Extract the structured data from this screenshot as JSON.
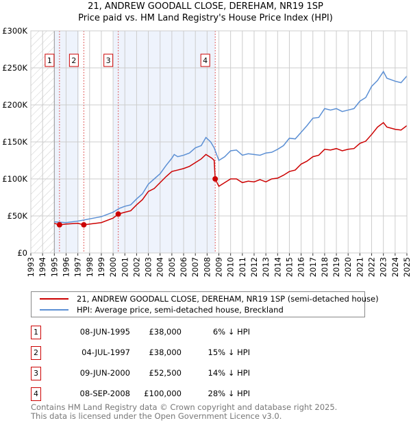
{
  "chart_data": {
    "type": "line",
    "title": "21, ANDREW GOODALL CLOSE, DEREHAM, NR19 1SP",
    "subtitle": "Price paid vs. HM Land Registry's House Price Index (HPI)",
    "xlim": [
      1993,
      2025
    ],
    "ylim": [
      0,
      300000
    ],
    "x_ticks": [
      "1993",
      "1994",
      "1995",
      "1996",
      "1997",
      "1998",
      "1999",
      "2000",
      "2001",
      "2002",
      "2003",
      "2004",
      "2005",
      "2006",
      "2007",
      "2008",
      "2009",
      "2010",
      "2011",
      "2012",
      "2013",
      "2014",
      "2015",
      "2016",
      "2017",
      "2018",
      "2019",
      "2020",
      "2021",
      "2022",
      "2023",
      "2024",
      "2025"
    ],
    "y_ticks": [
      {
        "v": 0,
        "label": "£0"
      },
      {
        "v": 50000,
        "label": "£50K"
      },
      {
        "v": 100000,
        "label": "£100K"
      },
      {
        "v": 150000,
        "label": "£150K"
      },
      {
        "v": 200000,
        "label": "£200K"
      },
      {
        "v": 250000,
        "label": "£250K"
      },
      {
        "v": 300000,
        "label": "£300K"
      }
    ],
    "grid": true,
    "series": [
      {
        "name": "21, ANDREW GOODALL CLOSE, DEREHAM, NR19 1SP (semi-detached house)",
        "color": "#cc0000",
        "x": [
          1995,
          1995.44,
          1996,
          1997,
          1997.5,
          1998,
          1999,
          2000,
          2000.44,
          2001,
          2001.5,
          2002,
          2002.5,
          2003,
          2003.5,
          2004,
          2004.5,
          2005,
          2005.5,
          2006,
          2006.5,
          2007,
          2007.5,
          2007.9,
          2008.4,
          2008.6,
          2008.69,
          2009,
          2009.5,
          2010,
          2010.5,
          2011,
          2011.5,
          2012,
          2012.5,
          2013,
          2013.5,
          2014,
          2014.5,
          2015,
          2015.5,
          2016,
          2016.5,
          2017,
          2017.5,
          2018,
          2018.5,
          2019,
          2019.5,
          2020,
          2020.5,
          2021,
          2021.5,
          2022,
          2022.5,
          2023,
          2023.3,
          2024,
          2024.5,
          2025
        ],
        "y": [
          40000,
          38000,
          39000,
          40000,
          38000,
          39000,
          41000,
          47000,
          52500,
          55000,
          57000,
          65000,
          72000,
          83000,
          87000,
          95000,
          103000,
          110000,
          112000,
          114000,
          117000,
          122000,
          127000,
          133000,
          128000,
          125000,
          100000,
          90000,
          95000,
          100000,
          100000,
          95000,
          97000,
          96000,
          99000,
          96000,
          100000,
          101000,
          105000,
          110000,
          112000,
          120000,
          124000,
          130000,
          132000,
          140000,
          139000,
          141000,
          138000,
          140000,
          141000,
          148000,
          151000,
          160000,
          170000,
          176000,
          170000,
          167000,
          166000,
          172000
        ]
      },
      {
        "name": "HPI: Average price, semi-detached house, Breckland",
        "color": "#5b8fd4",
        "x": [
          1995,
          1996,
          1997,
          1998,
          1999,
          2000,
          2000.5,
          2001,
          2001.5,
          2002,
          2002.5,
          2003,
          2003.5,
          2004,
          2004.5,
          2005,
          2005.2,
          2005.5,
          2006,
          2006.5,
          2007,
          2007.5,
          2007.9,
          2008.3,
          2008.6,
          2009,
          2009.5,
          2010,
          2010.5,
          2011,
          2011.5,
          2012,
          2012.5,
          2013,
          2013.5,
          2014,
          2014.5,
          2015,
          2015.5,
          2016,
          2016.5,
          2017,
          2017.5,
          2018,
          2018.5,
          2019,
          2019.5,
          2020,
          2020.5,
          2021,
          2021.5,
          2022,
          2022.5,
          2023,
          2023.3,
          2024,
          2024.5,
          2025
        ],
        "y": [
          42000,
          41000,
          43000,
          46000,
          49000,
          55000,
          60000,
          63000,
          65000,
          73000,
          80000,
          93000,
          100000,
          107000,
          118000,
          128000,
          133000,
          130000,
          132000,
          135000,
          142000,
          145000,
          156000,
          150000,
          142000,
          125000,
          130000,
          138000,
          139000,
          132000,
          134000,
          133000,
          132000,
          135000,
          136000,
          140000,
          145000,
          155000,
          154000,
          163000,
          172000,
          182000,
          183000,
          195000,
          193000,
          195000,
          191000,
          193000,
          195000,
          205000,
          210000,
          225000,
          233000,
          245000,
          236000,
          232000,
          230000,
          239000
        ]
      }
    ],
    "sales": [
      {
        "num": "1",
        "x": 1995.44,
        "price_value": 38000,
        "date": "08-JUN-1995",
        "price": "£38,000",
        "hpi": "6% ↓ HPI"
      },
      {
        "num": "2",
        "x": 1997.51,
        "price_value": 38000,
        "date": "04-JUL-1997",
        "price": "£38,000",
        "hpi": "15% ↓ HPI"
      },
      {
        "num": "3",
        "x": 2000.44,
        "price_value": 52500,
        "date": "09-JUN-2000",
        "price": "£52,500",
        "hpi": "14% ↓ HPI"
      },
      {
        "num": "4",
        "x": 2008.69,
        "price_value": 100000,
        "date": "08-SEP-2008",
        "price": "£100,000",
        "hpi": "28% ↓ HPI"
      }
    ],
    "shaded_ranges": [
      [
        1995,
        1997.1
      ],
      [
        2000,
        2008.7
      ]
    ],
    "hatched_range": [
      1993,
      1995
    ]
  },
  "footer": {
    "line1": "Contains HM Land Registry data © Crown copyright and database right 2025.",
    "line2": "This data is licensed under the Open Government Licence v3.0."
  }
}
